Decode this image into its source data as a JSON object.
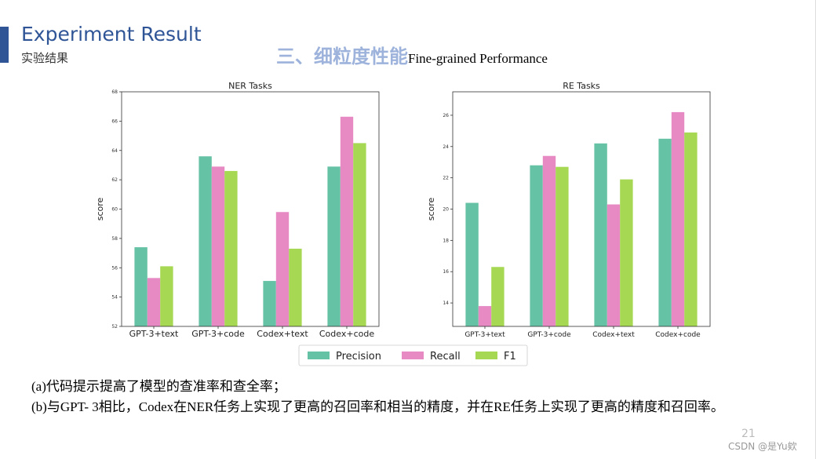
{
  "header": {
    "title": "Experiment Result",
    "subtitle": "实验结果",
    "section_cn": "三、细粒度性能",
    "section_en": "Fine-grained Performance"
  },
  "colors": {
    "precision": "#66C2A5",
    "recall": "#E78AC3",
    "f1": "#A6D854",
    "accent": "#2F5597"
  },
  "chart_data": [
    {
      "type": "bar",
      "title": "NER Tasks",
      "xlabel": "",
      "ylabel": "score",
      "ylim": [
        52,
        68
      ],
      "yticks": [
        "52",
        "54",
        "56",
        "58",
        "60",
        "62",
        "64",
        "66",
        "68"
      ],
      "categories": [
        "GPT-3+text",
        "GPT-3+code",
        "Codex+text",
        "Codex+code"
      ],
      "series": [
        {
          "name": "Precision",
          "values": [
            57.4,
            63.6,
            55.1,
            62.9
          ]
        },
        {
          "name": "Recall",
          "values": [
            55.3,
            62.9,
            59.8,
            66.3
          ]
        },
        {
          "name": "F1",
          "values": [
            56.1,
            62.6,
            57.3,
            64.5
          ]
        }
      ]
    },
    {
      "type": "bar",
      "title": "RE Tasks",
      "xlabel": "",
      "ylabel": "score",
      "ylim": [
        12.5,
        27.5
      ],
      "yticks": [
        "14",
        "16",
        "18",
        "20",
        "22",
        "24",
        "26"
      ],
      "categories": [
        "GPT-3+text",
        "GPT-3+code",
        "Codex+text",
        "Codex+code"
      ],
      "series": [
        {
          "name": "Precision",
          "values": [
            20.4,
            22.8,
            24.2,
            24.5
          ]
        },
        {
          "name": "Recall",
          "values": [
            13.8,
            23.4,
            20.3,
            26.2
          ]
        },
        {
          "name": "F1",
          "values": [
            16.3,
            22.7,
            21.9,
            24.9
          ]
        }
      ]
    }
  ],
  "legend": [
    "Precision",
    "Recall",
    "F1"
  ],
  "notes": {
    "a": "(a)代码提示提高了模型的查准率和查全率；",
    "b": "(b)与GPT- 3相比，Codex在NER任务上实现了更高的召回率和相当的精度，并在RE任务上实现了更高的精度和召回率。"
  },
  "page_number": "21",
  "watermark": "CSDN @是Yu欸"
}
